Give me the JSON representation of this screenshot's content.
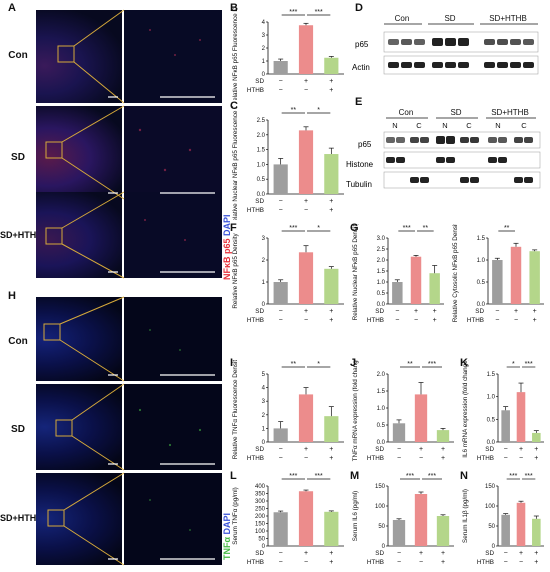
{
  "labels": {
    "A": "A",
    "B": "B",
    "C": "C",
    "D": "D",
    "E": "E",
    "F": "F",
    "G": "G",
    "H": "H",
    "I": "I",
    "J": "J",
    "K": "K",
    "L": "L",
    "M": "M",
    "N": "N"
  },
  "rows": {
    "con": "Con",
    "sd": "SD",
    "sdhthb": "SD+HTHB"
  },
  "side_labels": {
    "top_a": "NFκB p65",
    "top_b": "DAPI",
    "bottom_a": "TNFα",
    "bottom_b": "DAPI"
  },
  "wb": {
    "D": {
      "groups": [
        "Con",
        "SD",
        "SD+HTHB"
      ],
      "bands": [
        "p65",
        "Actin"
      ]
    },
    "E": {
      "groups": [
        "Con",
        "SD",
        "SD+HTHB"
      ],
      "subs": [
        "N",
        "C",
        "N",
        "C",
        "N",
        "C"
      ],
      "bands": [
        "p65",
        "Histone",
        "Tubulin"
      ]
    }
  },
  "colors": {
    "gray": "#9e9e9e",
    "red": "#ec8c8c",
    "green": "#b4d68a",
    "nfkb": "#e8323c",
    "tnf": "#44bb44",
    "dapi": "#3b53d9"
  },
  "cond": {
    "sd": "SD",
    "hthb": "HTHB",
    "rows": [
      [
        "−",
        "+",
        "+"
      ],
      [
        "−",
        "−",
        "+"
      ]
    ]
  },
  "chart_data": [
    {
      "panel": "B",
      "type": "bar",
      "ylabel": "Relative NFκB p65 Fluorescence Density",
      "ylim": [
        0,
        4
      ],
      "ticks": [
        "0",
        "1",
        "2",
        "3",
        "4"
      ],
      "values": [
        1.0,
        3.75,
        1.25
      ],
      "errors": [
        0.15,
        0.15,
        0.1
      ],
      "sig": [
        {
          "text": "***",
          "from": 0,
          "to": 1
        },
        {
          "text": "***",
          "from": 1,
          "to": 2
        }
      ]
    },
    {
      "panel": "C",
      "type": "bar",
      "ylabel": "Relative Nuclear NFκB p65 Fluorescence Density",
      "ylim": [
        0,
        2.5
      ],
      "ticks": [
        "0.0",
        "0.5",
        "1.0",
        "1.5",
        "2.0",
        "2.5"
      ],
      "values": [
        1.0,
        2.15,
        1.35
      ],
      "errors": [
        0.2,
        0.12,
        0.2
      ],
      "sig": [
        {
          "text": "**",
          "from": 0,
          "to": 1
        },
        {
          "text": "*",
          "from": 1,
          "to": 2
        }
      ]
    },
    {
      "panel": "F",
      "type": "bar",
      "ylabel": "Relative NFκB p65 Density",
      "ylim": [
        0,
        3
      ],
      "ticks": [
        "0",
        "1",
        "2",
        "3"
      ],
      "values": [
        1.0,
        2.35,
        1.6
      ],
      "errors": [
        0.1,
        0.3,
        0.1
      ],
      "sig": [
        {
          "text": "***",
          "from": 0,
          "to": 1
        },
        {
          "text": "*",
          "from": 1,
          "to": 2
        }
      ]
    },
    {
      "panel": "G",
      "type": "bar",
      "ylabel": "Relative Nuclear NFκB p65 Density",
      "ylim": [
        0,
        3
      ],
      "ticks": [
        "0.0",
        "0.5",
        "1.0",
        "1.5",
        "2.0",
        "2.5",
        "3.0"
      ],
      "values": [
        1.0,
        2.15,
        1.4
      ],
      "errors": [
        0.1,
        0.06,
        0.35
      ],
      "sig": [
        {
          "text": "***",
          "from": 0,
          "to": 1
        },
        {
          "text": "**",
          "from": 1,
          "to": 2
        }
      ]
    },
    {
      "panel": "G2",
      "type": "bar",
      "ylabel": "Relative Cytosolic NFκB p65 Density",
      "ylim": [
        0,
        1.5
      ],
      "ticks": [
        "0.0",
        "0.5",
        "1.0",
        "1.5"
      ],
      "values": [
        1.0,
        1.3,
        1.2
      ],
      "errors": [
        0.04,
        0.08,
        0.03
      ],
      "sig": [
        {
          "text": "**",
          "from": 0,
          "to": 1
        }
      ]
    },
    {
      "panel": "I",
      "type": "bar",
      "ylabel": "Relative TNFα Fluorescence Density",
      "ylim": [
        0,
        5
      ],
      "ticks": [
        "0",
        "1",
        "2",
        "3",
        "4",
        "5"
      ],
      "values": [
        1.0,
        3.5,
        1.9
      ],
      "errors": [
        0.5,
        0.5,
        0.7
      ],
      "sig": [
        {
          "text": "**",
          "from": 0,
          "to": 1
        },
        {
          "text": "*",
          "from": 1,
          "to": 2
        }
      ]
    },
    {
      "panel": "J",
      "type": "bar",
      "ylabel": "TNFα mRNA expression (fold change)",
      "ylim": [
        0,
        2
      ],
      "ticks": [
        "0.0",
        "0.5",
        "1.0",
        "1.5",
        "2.0"
      ],
      "values": [
        0.55,
        1.4,
        0.35
      ],
      "errors": [
        0.1,
        0.35,
        0.05
      ],
      "sig": [
        {
          "text": "**",
          "from": 0,
          "to": 1
        },
        {
          "text": "***",
          "from": 1,
          "to": 2
        }
      ]
    },
    {
      "panel": "K",
      "type": "bar",
      "ylabel": "IL6 mRNA expression (fold change)",
      "ylim": [
        0,
        1.5
      ],
      "ticks": [
        "0.0",
        "0.5",
        "1.0",
        "1.5"
      ],
      "values": [
        0.7,
        1.1,
        0.2
      ],
      "errors": [
        0.08,
        0.2,
        0.05
      ],
      "sig": [
        {
          "text": "*",
          "from": 0,
          "to": 1
        },
        {
          "text": "***",
          "from": 1,
          "to": 2
        }
      ]
    },
    {
      "panel": "L",
      "type": "bar",
      "ylabel": "Serum TNFα (pg/ml)",
      "ylim": [
        0,
        400
      ],
      "ticks": [
        "0",
        "50",
        "100",
        "150",
        "200",
        "250",
        "300",
        "350",
        "400"
      ],
      "values": [
        225,
        365,
        228
      ],
      "errors": [
        8,
        8,
        6
      ],
      "sig": [
        {
          "text": "***",
          "from": 0,
          "to": 1
        },
        {
          "text": "***",
          "from": 1,
          "to": 2
        }
      ]
    },
    {
      "panel": "M",
      "type": "bar",
      "ylabel": "Serum IL6 (pg/ml)",
      "ylim": [
        0,
        150
      ],
      "ticks": [
        "0",
        "50",
        "100",
        "150"
      ],
      "values": [
        65,
        130,
        75
      ],
      "errors": [
        3,
        5,
        3
      ],
      "sig": [
        {
          "text": "***",
          "from": 0,
          "to": 1
        },
        {
          "text": "***",
          "from": 1,
          "to": 2
        }
      ]
    },
    {
      "panel": "N",
      "type": "bar",
      "ylabel": "Serum IL1β (pg/ml)",
      "ylim": [
        0,
        150
      ],
      "ticks": [
        "0",
        "50",
        "100",
        "150"
      ],
      "values": [
        78,
        108,
        68
      ],
      "errors": [
        3,
        4,
        7
      ],
      "sig": [
        {
          "text": "***",
          "from": 0,
          "to": 1
        },
        {
          "text": "***",
          "from": 1,
          "to": 2
        }
      ]
    }
  ]
}
